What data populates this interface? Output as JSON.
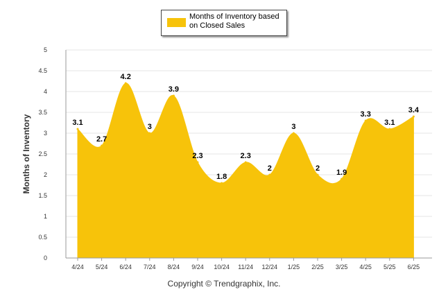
{
  "chart_data": {
    "type": "area",
    "ylabel": "Months of Inventory",
    "xlabel": "",
    "ylim": [
      0,
      5
    ],
    "yticks": [
      "0",
      "0.5",
      "1",
      "1.5",
      "2",
      "2.5",
      "3",
      "3.5",
      "4",
      "4.5",
      "5"
    ],
    "categories": [
      "4/24",
      "5/24",
      "6/24",
      "7/24",
      "8/24",
      "9/24",
      "10/24",
      "11/24",
      "12/24",
      "1/25",
      "2/25",
      "3/25",
      "4/25",
      "5/25",
      "6/25"
    ],
    "series": [
      {
        "name": "Months of Inventory based on Closed Sales",
        "values": [
          3.1,
          2.7,
          4.2,
          3,
          3.9,
          2.3,
          1.8,
          2.3,
          2,
          3,
          2,
          1.9,
          3.3,
          3.1,
          3.4
        ],
        "labels": [
          "3.1",
          "2.7",
          "4.2",
          "3",
          "3.9",
          "2.3",
          "1.8",
          "2.3",
          "2",
          "3",
          "2",
          "1.9",
          "3.3",
          "3.1",
          "3.4"
        ]
      }
    ],
    "grid": true,
    "legend_position": "top-center"
  },
  "colors": {
    "area": "#F7C30A",
    "grid": "#E6E6E6",
    "axis": "#999999"
  },
  "legend": {
    "label": "Months of Inventory based on Closed Sales"
  },
  "footer": {
    "copyright": "Copyright © Trendgraphix, Inc."
  }
}
